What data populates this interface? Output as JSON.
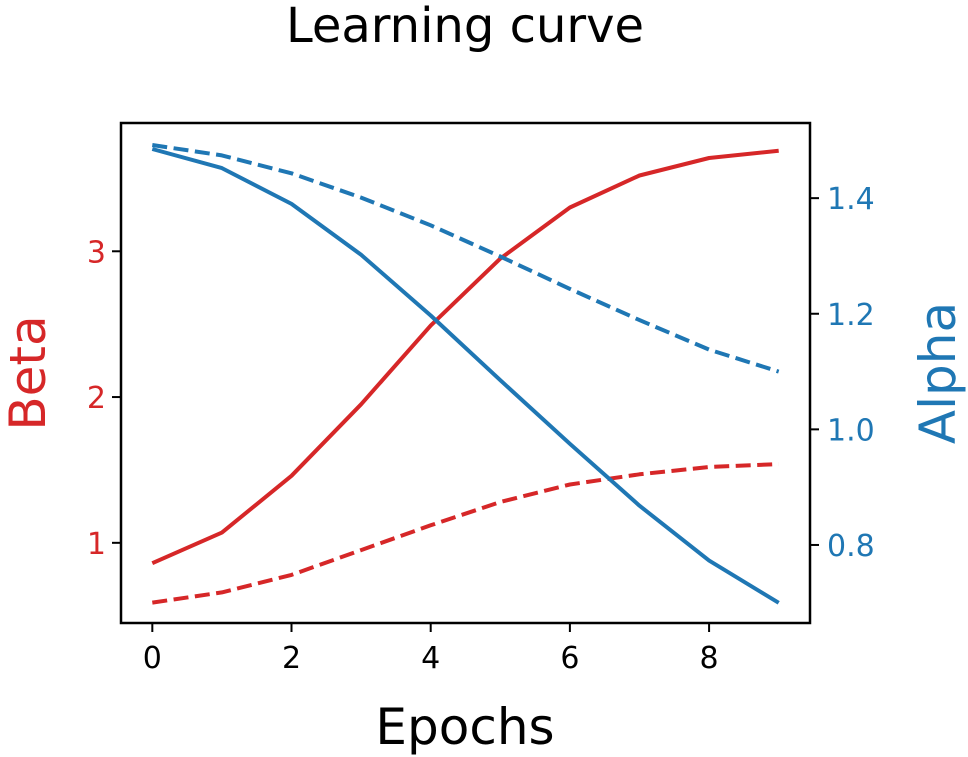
{
  "chart_data": {
    "type": "line",
    "title": "Learning curve",
    "xlabel": "Epochs",
    "x": [
      0,
      1,
      2,
      3,
      4,
      5,
      6,
      7,
      8,
      9
    ],
    "xlim": [
      -0.45,
      9.45
    ],
    "xticks": [
      0,
      2,
      4,
      6,
      8
    ],
    "left_axis": {
      "label": "Beta",
      "color": "#d62728",
      "ylim": [
        0.45,
        3.88
      ],
      "ticks": [
        1,
        2,
        3
      ]
    },
    "right_axis": {
      "label": "Alpha",
      "color": "#1f77b4",
      "ylim": [
        0.665,
        1.53
      ],
      "ticks": [
        0.8,
        1.0,
        1.2,
        1.4
      ],
      "tick_labels": [
        "0.8",
        "1.0",
        "1.2",
        "1.4"
      ]
    },
    "series": [
      {
        "axis": "left",
        "style": "solid",
        "color": "#d62728",
        "values": [
          0.86,
          1.07,
          1.46,
          1.95,
          2.49,
          2.95,
          3.3,
          3.52,
          3.64,
          3.69
        ]
      },
      {
        "axis": "left",
        "style": "dashed",
        "color": "#d62728",
        "values": [
          0.59,
          0.66,
          0.78,
          0.95,
          1.12,
          1.28,
          1.4,
          1.47,
          1.52,
          1.54
        ]
      },
      {
        "axis": "right",
        "style": "solid",
        "color": "#1f77b4",
        "values": [
          1.485,
          1.452,
          1.39,
          1.302,
          1.197,
          1.085,
          0.975,
          0.868,
          0.773,
          0.7
        ]
      },
      {
        "axis": "right",
        "style": "dashed",
        "color": "#1f77b4",
        "values": [
          1.492,
          1.474,
          1.443,
          1.401,
          1.353,
          1.299,
          1.243,
          1.189,
          1.138,
          1.1
        ]
      }
    ]
  }
}
